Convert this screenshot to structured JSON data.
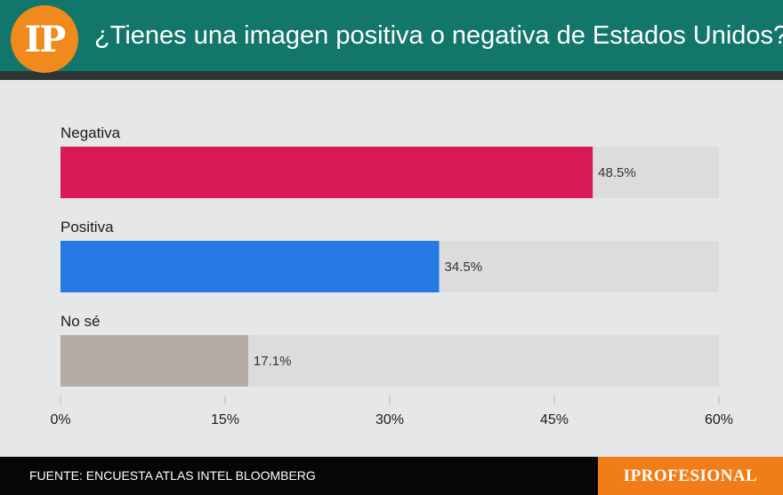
{
  "header": {
    "logo_text": "IP",
    "title": "¿Tienes una imagen positiva o negativa de Estados Unidos?"
  },
  "footer": {
    "source": "FUENTE: ENCUESTA ATLAS INTEL BLOOMBERG",
    "brand": "IPROFESIONAL"
  },
  "colors": {
    "header_bg": "#12776a",
    "logo_bg": "#f18a1c",
    "brand_bg": "#f07d17",
    "track": "#dcdcdc"
  },
  "chart_data": {
    "type": "bar",
    "orientation": "horizontal",
    "title": "¿Tienes una imagen positiva o negativa de Estados Unidos?",
    "categories": [
      "Negativa",
      "Positiva",
      "No sé"
    ],
    "values": [
      48.5,
      34.5,
      17.1
    ],
    "value_labels": [
      "48.5%",
      "34.5%",
      "17.1%"
    ],
    "colors": [
      "#d81b56",
      "#2479e5",
      "#b4aba6"
    ],
    "xlim": [
      0,
      60
    ],
    "ticks": [
      0,
      15,
      30,
      45,
      60
    ],
    "tick_labels": [
      "0%",
      "15%",
      "30%",
      "45%",
      "60%"
    ],
    "xlabel": "",
    "ylabel": "",
    "grid": false,
    "legend": "none"
  }
}
